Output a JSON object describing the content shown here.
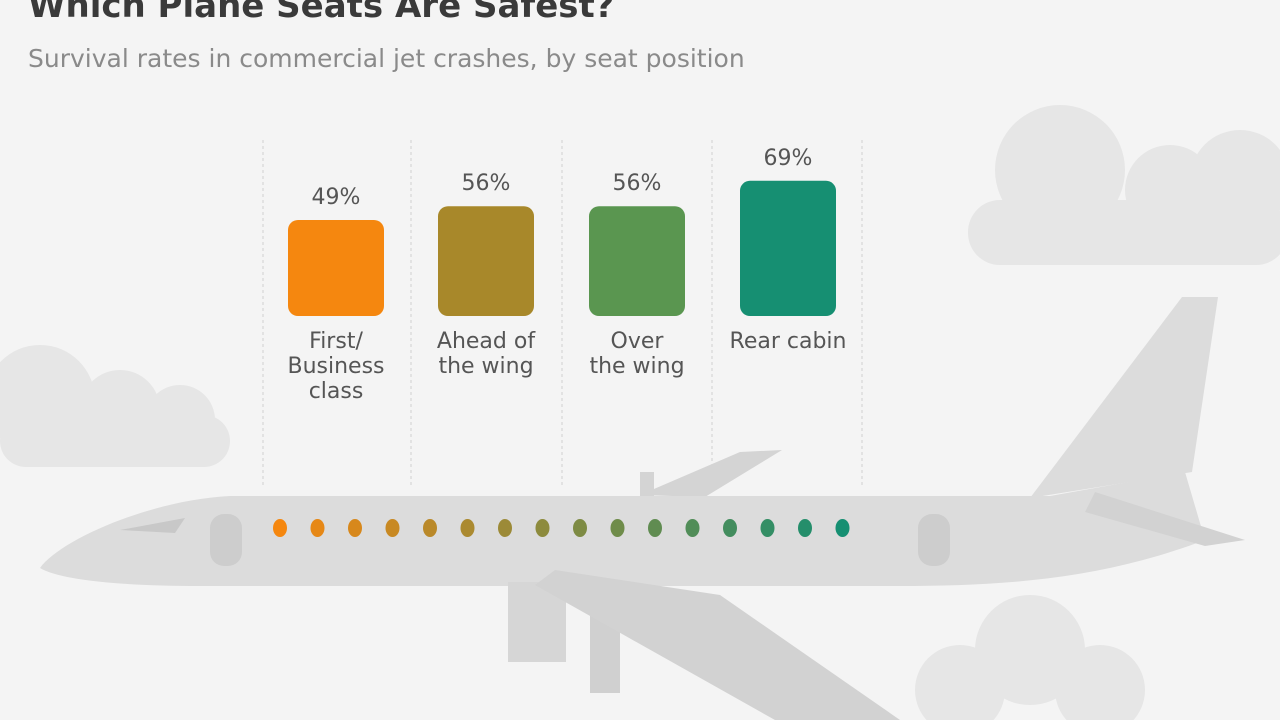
{
  "chart_data": {
    "type": "bar",
    "title": "Which Plane Seats Are Safest?",
    "subtitle": "Survival rates in commercial jet crashes, by seat position",
    "categories": [
      "First/\nBusiness\nclass",
      "Ahead of\nthe wing",
      "Over\nthe wing",
      "Rear cabin"
    ],
    "values": [
      49,
      56,
      56,
      69
    ],
    "value_labels": [
      "49%",
      "56%",
      "56%",
      "69%"
    ],
    "colors": [
      "#f5870f",
      "#a8882a",
      "#5a9650",
      "#168f72"
    ]
  }
}
